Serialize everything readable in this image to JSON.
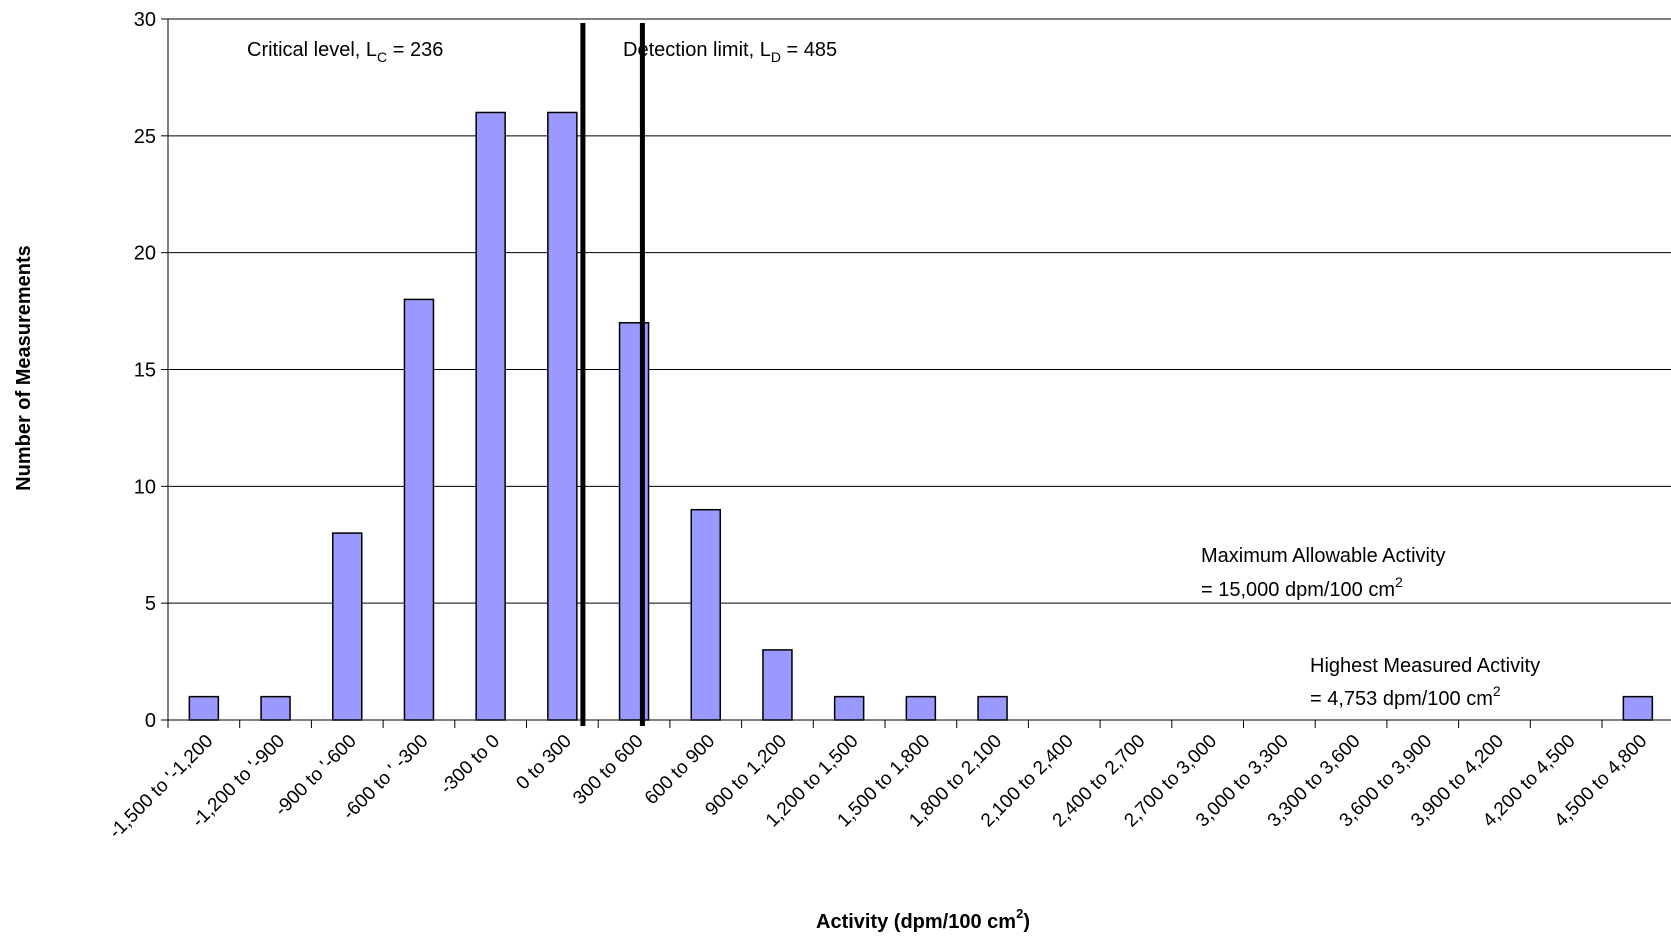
{
  "chart_data": {
    "type": "bar",
    "title": "",
    "xlabel": {
      "main": "Activity (dpm/100 cm",
      "sup": "2",
      "end": ")"
    },
    "ylabel": "Number of Measurements",
    "ylim": [
      0,
      30
    ],
    "yticks": [
      0,
      5,
      10,
      15,
      20,
      25,
      30
    ],
    "grid": true,
    "legend": "none",
    "bar_color": "#9999ff",
    "bar_edge_color": "#000000",
    "categories": [
      "-1,500 to '-1,200",
      "-1,200 to '-900",
      "-900 to '-600",
      "-600 to ' -300",
      "-300 to 0",
      "0 to 300",
      "300 to 600",
      "600 to 900",
      "900 to 1,200",
      "1,200 to 1,500",
      "1,500 to 1,800",
      "1,800 to 2,100",
      "2,100 to 2,400",
      "2,400 to 2,700",
      "2,700 to 3,000",
      "3,000 to 3,300",
      "3,300 to 3,600",
      "3,600 to 3,900",
      "3,900 to 4,200",
      "4,200 to 4,500",
      "4,500 to 4,800"
    ],
    "values": [
      1,
      1,
      8,
      18,
      26,
      26,
      17,
      9,
      3,
      1,
      1,
      1,
      0,
      0,
      0,
      0,
      0,
      0,
      0,
      0,
      1
    ],
    "reference_lines": [
      {
        "x_value": 236,
        "label_main": "Critical level, L",
        "label_sub": "C",
        "label_end": " = 236"
      },
      {
        "x_value": 485,
        "label_main": "Detection limit, L",
        "label_sub": "D",
        "label_end": " = 485"
      }
    ],
    "x_range": [
      -1500,
      4800
    ],
    "annotations": [
      {
        "line1": "Maximum Allowable Activity",
        "line2_main": "= 15,000 dpm/100 cm",
        "line2_sup": "2"
      },
      {
        "line1": "Highest Measured Activity",
        "line2_main": " = 4,753 dpm/100 cm",
        "line2_sup": "2"
      }
    ]
  }
}
